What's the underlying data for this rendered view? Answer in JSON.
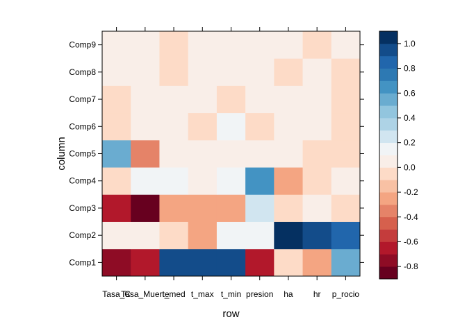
{
  "chart_data": {
    "type": "heatmap",
    "xlabel": "row",
    "ylabel": "column",
    "x_categories": [
      "Tasa_Casos",
      "Tasa_Muerte",
      "t_med",
      "t_max",
      "t_min",
      "presion",
      "ha",
      "hr",
      "p_rocio"
    ],
    "x_tick_labels": [
      "Tasa_C",
      "Tasa_Muerte",
      "t_med",
      "t_max",
      "t_min",
      "presion",
      "ha",
      "hr",
      "p_rocio"
    ],
    "y_categories": [
      "Comp1",
      "Comp2",
      "Comp3",
      "Comp4",
      "Comp5",
      "Comp6",
      "Comp7",
      "Comp8",
      "Comp9"
    ],
    "values": [
      [
        -0.75,
        -0.62,
        0.9,
        0.9,
        0.9,
        -0.62,
        -0.08,
        -0.25,
        0.5
      ],
      [
        0.02,
        0.02,
        -0.08,
        -0.25,
        0.15,
        0.15,
        1.05,
        0.9,
        0.8
      ],
      [
        -0.62,
        -0.85,
        -0.25,
        -0.25,
        -0.25,
        0.25,
        -0.08,
        0.02,
        -0.08
      ],
      [
        -0.08,
        0.15,
        0.15,
        0.02,
        0.15,
        0.6,
        -0.25,
        -0.08,
        0.02
      ],
      [
        0.5,
        -0.35,
        0.02,
        0.02,
        0.02,
        0.02,
        0.02,
        -0.08,
        -0.08
      ],
      [
        -0.08,
        0.02,
        0.02,
        -0.08,
        0.15,
        -0.08,
        0.02,
        0.02,
        -0.08
      ],
      [
        -0.08,
        0.02,
        0.02,
        0.02,
        -0.08,
        0.02,
        0.02,
        0.02,
        -0.08
      ],
      [
        0.02,
        0.02,
        -0.08,
        0.02,
        0.02,
        0.02,
        -0.08,
        0.02,
        -0.08
      ],
      [
        0.02,
        0.02,
        -0.08,
        0.02,
        0.02,
        0.02,
        0.02,
        -0.08,
        0.02
      ]
    ],
    "colorbar": {
      "breaks": [
        -0.9,
        -0.8,
        -0.7,
        -0.6,
        -0.5,
        -0.4,
        -0.3,
        -0.2,
        -0.1,
        0.0,
        0.1,
        0.2,
        0.3,
        0.4,
        0.5,
        0.6,
        0.7,
        0.8,
        0.9,
        1.0,
        1.1
      ],
      "colors": [
        "#67001F",
        "#8E0C25",
        "#B2182B",
        "#C43C3C",
        "#D6604D",
        "#E58368",
        "#F4A582",
        "#F8C1A4",
        "#FDDBC7",
        "#F9EEE8",
        "#F1F4F6",
        "#D1E5F0",
        "#AED3E6",
        "#92C5DE",
        "#6AACD0",
        "#4393C3",
        "#2D79B3",
        "#2166AC",
        "#134C8A",
        "#053061"
      ],
      "tick_values": [
        -0.8,
        -0.6,
        -0.4,
        -0.2,
        0.0,
        0.2,
        0.4,
        0.6,
        0.8,
        1.0
      ],
      "tick_labels": [
        "-0.8",
        "-0.6",
        "-0.4",
        "-0.2",
        "0.0",
        "0.2",
        "0.4",
        "0.6",
        "0.8",
        "1.0"
      ]
    }
  }
}
